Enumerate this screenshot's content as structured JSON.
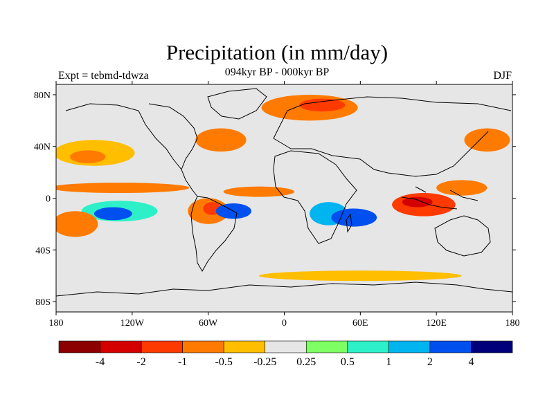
{
  "title": "Precipitation (in mm/day)",
  "experiment_label": "Expt = tebmd-tdwza",
  "period_label": "094kyr BP - 000kyr BP",
  "season_label": "DJF",
  "lat_ticks": [
    {
      "value": 80,
      "label": "80N"
    },
    {
      "value": 40,
      "label": "40N"
    },
    {
      "value": 0,
      "label": "0"
    },
    {
      "value": -40,
      "label": "40S"
    },
    {
      "value": -80,
      "label": "80S"
    }
  ],
  "lon_ticks": [
    {
      "value": -180,
      "label": "180"
    },
    {
      "value": -120,
      "label": "120W"
    },
    {
      "value": -60,
      "label": "60W"
    },
    {
      "value": 0,
      "label": "0"
    },
    {
      "value": 60,
      "label": "60E"
    },
    {
      "value": 120,
      "label": "120E"
    },
    {
      "value": 180,
      "label": "180"
    }
  ],
  "colorbar": {
    "colors": [
      "#8b0000",
      "#d40000",
      "#ff3a00",
      "#ff7a00",
      "#ffbe00",
      "#e6e6e6",
      "#7eff63",
      "#2ef0c8",
      "#00b4f0",
      "#0050f0",
      "#00007a"
    ],
    "labels": [
      "-4",
      "-2",
      "-1",
      "-0.5",
      "-0.25",
      "0.25",
      "0.5",
      "1",
      "2",
      "4"
    ]
  },
  "anomaly_regions": [
    {
      "name": "north-pacific-dry",
      "lon": -150,
      "lat": 35,
      "rx": 32,
      "ry": 10,
      "level": 4
    },
    {
      "name": "north-pacific-dry-core",
      "lon": -155,
      "lat": 32,
      "rx": 14,
      "ry": 5,
      "level": 3
    },
    {
      "name": "itcz-pacific-dry",
      "lon": -130,
      "lat": 8,
      "rx": 55,
      "ry": 4,
      "level": 3
    },
    {
      "name": "south-pacific-wet",
      "lon": -130,
      "lat": -10,
      "rx": 30,
      "ry": 8,
      "level": 7
    },
    {
      "name": "south-pacific-wet-core",
      "lon": -135,
      "lat": -12,
      "rx": 15,
      "ry": 5,
      "level": 9
    },
    {
      "name": "south-pacific-dry",
      "lon": -165,
      "lat": -20,
      "rx": 18,
      "ry": 10,
      "level": 3
    },
    {
      "name": "amazon-dry",
      "lon": -60,
      "lat": -10,
      "rx": 16,
      "ry": 10,
      "level": 3
    },
    {
      "name": "amazon-dry-core",
      "lon": -57,
      "lat": -8,
      "rx": 7,
      "ry": 5,
      "level": 2
    },
    {
      "name": "south-atlantic-wet",
      "lon": -40,
      "lat": -10,
      "rx": 14,
      "ry": 6,
      "level": 9
    },
    {
      "name": "atlantic-itcz-dry",
      "lon": -20,
      "lat": 5,
      "rx": 28,
      "ry": 4,
      "level": 3
    },
    {
      "name": "north-atlantic-dry",
      "lon": -50,
      "lat": 45,
      "rx": 20,
      "ry": 9,
      "level": 3
    },
    {
      "name": "europe-dry",
      "lon": 20,
      "lat": 70,
      "rx": 38,
      "ry": 10,
      "level": 3
    },
    {
      "name": "europe-dry-core",
      "lon": 30,
      "lat": 72,
      "rx": 18,
      "ry": 5,
      "level": 2
    },
    {
      "name": "south-africa-wet",
      "lon": 35,
      "lat": -12,
      "rx": 15,
      "ry": 9,
      "level": 8
    },
    {
      "name": "south-indian-wet",
      "lon": 55,
      "lat": -15,
      "rx": 18,
      "ry": 7,
      "level": 9
    },
    {
      "name": "maritime-continent-dry",
      "lon": 110,
      "lat": -5,
      "rx": 25,
      "ry": 9,
      "level": 2
    },
    {
      "name": "maritime-continent-core",
      "lon": 105,
      "lat": -3,
      "rx": 12,
      "ry": 4,
      "level": 1
    },
    {
      "name": "west-pacific-dry",
      "lon": 140,
      "lat": 8,
      "rx": 20,
      "ry": 6,
      "level": 3
    },
    {
      "name": "east-asia-dry",
      "lon": 160,
      "lat": 45,
      "rx": 18,
      "ry": 9,
      "level": 3
    },
    {
      "name": "southern-ocean-dry",
      "lon": 60,
      "lat": -60,
      "rx": 80,
      "ry": 4,
      "level": 4
    }
  ]
}
